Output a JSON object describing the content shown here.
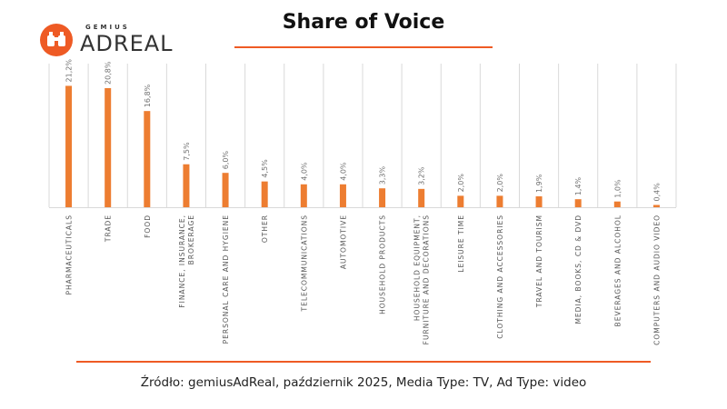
{
  "header": {
    "title": "Share of Voice",
    "logo_small": "GEMIUS",
    "logo_big": "ADREAL"
  },
  "footer": {
    "source": "Źródło: gemiusAdReal, październik 2025, Media Type: TV, Ad Type: video"
  },
  "colors": {
    "accent": "#ee5a24",
    "bar": "#ed7d31",
    "grid": "#d9d9d9"
  },
  "chart_data": {
    "type": "bar",
    "title": "Share of Voice",
    "xlabel": "",
    "ylabel": "",
    "ylim": [
      0,
      25
    ],
    "grid": true,
    "categories": [
      [
        "PHARMACEUTICALS"
      ],
      [
        "TRADE"
      ],
      [
        "FOOD"
      ],
      [
        "FINANCE, INSURANCE,",
        "BROKERAGE"
      ],
      [
        "PERSONAL CARE AND HYGIENE"
      ],
      [
        "OTHER"
      ],
      [
        "TELECOMMUNICATIONS"
      ],
      [
        "AUTOMOTIVE"
      ],
      [
        "HOUSEHOLD PRODUCTS"
      ],
      [
        "HOUSEHOLD EQUIPMENT,",
        "FURNITURE AND DECORATIONS"
      ],
      [
        "LEISURE TIME"
      ],
      [
        "CLOTHING AND ACCESSORIES"
      ],
      [
        "TRAVEL AND TOURISM"
      ],
      [
        "MEDIA, BOOKS, CD & DVD"
      ],
      [
        "BEVERAGES AND ALCOHOL"
      ],
      [
        "COMPUTERS AND AUDIO VIDEO"
      ]
    ],
    "values": [
      21.2,
      20.8,
      16.8,
      7.5,
      6.0,
      4.5,
      4.0,
      4.0,
      3.3,
      3.2,
      2.0,
      2.0,
      1.9,
      1.4,
      1.0,
      0.4
    ],
    "value_labels": [
      "21,2%",
      "20,8%",
      "16,8%",
      "7,5%",
      "6,0%",
      "4,5%",
      "4,0%",
      "4,0%",
      "3,3%",
      "3,2%",
      "2,0%",
      "2,0%",
      "1,9%",
      "1,4%",
      "1,0%",
      "0,4%"
    ]
  }
}
